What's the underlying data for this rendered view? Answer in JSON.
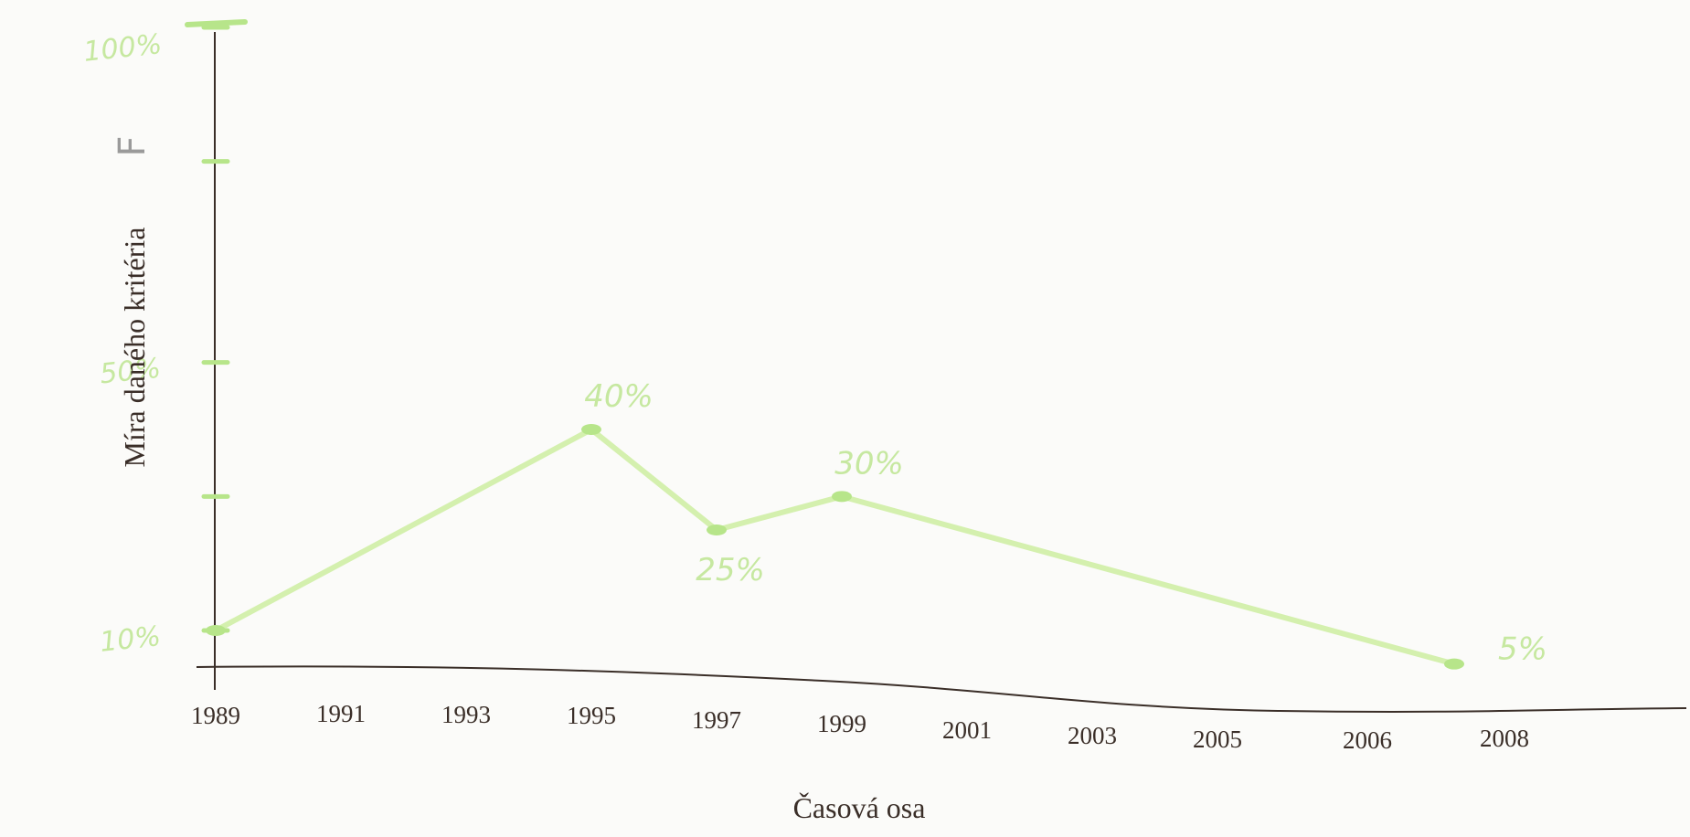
{
  "chart_data": {
    "type": "line",
    "title": "",
    "xlabel": "Časová osa",
    "ylabel": "Míra daného kritéria",
    "corner_mark": "F",
    "x_categories": [
      "1989",
      "1991",
      "1993",
      "1995",
      "1997",
      "1999",
      "2001",
      "2003",
      "2005",
      "2006",
      "2008"
    ],
    "y_ticks": [
      {
        "label": "100%",
        "value": 100
      },
      {
        "label": "",
        "value": 80
      },
      {
        "label": "50%",
        "value": 50
      },
      {
        "label": "",
        "value": 30
      },
      {
        "label": "10%",
        "value": 10
      }
    ],
    "ylim": [
      5,
      100
    ],
    "grid": false,
    "series": [
      {
        "values": [
          {
            "x": "1989",
            "y": 10,
            "label": ""
          },
          {
            "x": "1995",
            "y": 40,
            "label": "40%"
          },
          {
            "x": "1997",
            "y": 25,
            "label": "25%"
          },
          {
            "x": "1999",
            "y": 30,
            "label": "30%"
          },
          {
            "x": "2008",
            "y": 5,
            "label": "5%"
          }
        ]
      }
    ],
    "colors": {
      "line": "#d4f0ae",
      "point": "#b7e58a",
      "axis": "#3a2e28"
    }
  }
}
